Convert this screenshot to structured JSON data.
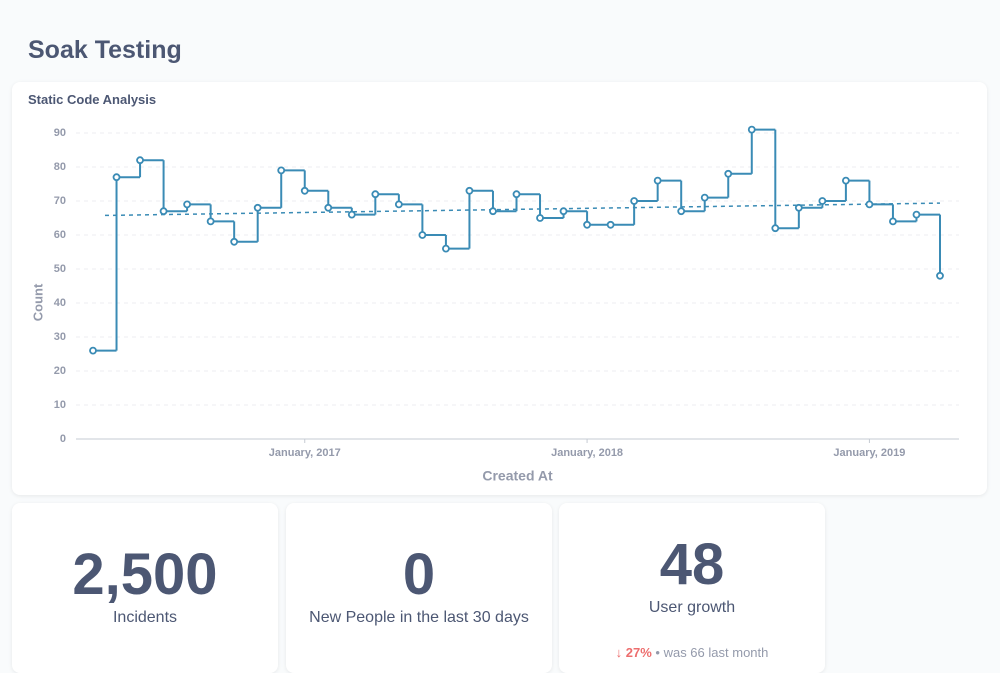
{
  "header": {
    "title": "Soak Testing"
  },
  "chart_data": {
    "type": "step",
    "title": "Static Code Analysis",
    "x_label": "Created At",
    "y_label": "Count",
    "color": "#3a8bb5",
    "grid": true,
    "trend_line": true,
    "x": [
      "2016-04",
      "2016-05",
      "2016-06",
      "2016-07",
      "2016-08",
      "2016-09",
      "2016-10",
      "2016-11",
      "2016-12",
      "2017-01",
      "2017-02",
      "2017-03",
      "2017-04",
      "2017-05",
      "2017-06",
      "2017-07",
      "2017-08",
      "2017-09",
      "2017-10",
      "2017-11",
      "2017-12",
      "2018-01",
      "2018-02",
      "2018-03",
      "2018-04",
      "2018-05",
      "2018-06",
      "2018-07",
      "2018-08",
      "2018-09",
      "2018-10",
      "2018-11",
      "2018-12",
      "2019-01",
      "2019-02",
      "2019-03",
      "2019-04"
    ],
    "values": [
      26,
      77,
      82,
      67,
      69,
      64,
      58,
      68,
      79,
      73,
      68,
      66,
      72,
      69,
      60,
      56,
      73,
      67,
      72,
      65,
      67,
      63,
      63,
      70,
      76,
      67,
      71,
      78,
      91,
      62,
      68,
      70,
      76,
      69,
      64,
      66,
      48
    ],
    "xticks": [
      {
        "value": "2017-01",
        "label": "January, 2017"
      },
      {
        "value": "2018-01",
        "label": "January, 2018"
      },
      {
        "value": "2019-01",
        "label": "January, 2019"
      }
    ],
    "ylim": [
      0,
      95
    ],
    "yticks": [
      0,
      10,
      20,
      30,
      40,
      50,
      60,
      70,
      80,
      90
    ]
  },
  "cards": [
    {
      "value": "2,500",
      "label": "Incidents"
    },
    {
      "value": "0",
      "label": "New People in the last 30 days"
    },
    {
      "value": "48",
      "label": "User growth",
      "change": "27%",
      "previous": "was 66",
      "period": "last month"
    }
  ]
}
